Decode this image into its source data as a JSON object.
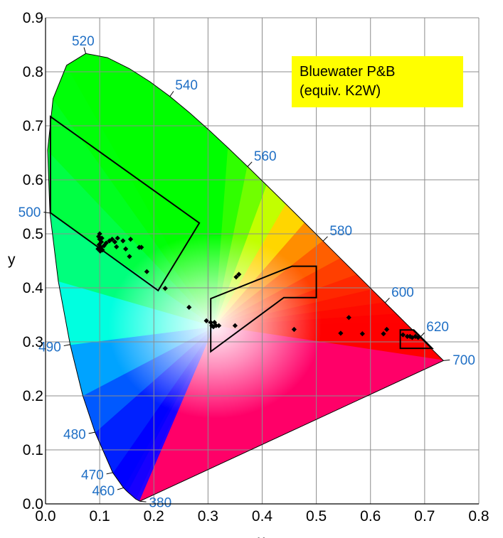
{
  "chart_data": {
    "type": "scatter",
    "title": "",
    "xlabel": "x",
    "ylabel": "y",
    "xlim": [
      0,
      0.8
    ],
    "ylim": [
      0,
      0.9
    ],
    "x_ticks": [
      "0.0",
      "0.1",
      "0.2",
      "0.3",
      "0.4",
      "0.5",
      "0.6",
      "0.7",
      "0.8"
    ],
    "y_ticks": [
      "0.0",
      "0.1",
      "0.2",
      "0.3",
      "0.4",
      "0.5",
      "0.6",
      "0.7",
      "0.8",
      "0.9"
    ],
    "grid": true,
    "annotation": {
      "line1": "Bluewater P&B",
      "line2": "(equiv. K2W)"
    },
    "annotation_color": "#ffff00",
    "wavelength_color": "#1f6fc5",
    "spectral_locus": [
      [
        0.1741,
        0.005
      ],
      [
        0.1666,
        0.0089
      ],
      [
        0.151,
        0.0227
      ],
      [
        0.144,
        0.0297
      ],
      [
        0.1241,
        0.0578
      ],
      [
        0.0913,
        0.1327
      ],
      [
        0.0687,
        0.2007
      ],
      [
        0.0454,
        0.295
      ],
      [
        0.0235,
        0.4127
      ],
      [
        0.0082,
        0.5384
      ],
      [
        0.0039,
        0.6548
      ],
      [
        0.0139,
        0.7502
      ],
      [
        0.0389,
        0.812
      ],
      [
        0.0743,
        0.8338
      ],
      [
        0.1142,
        0.8262
      ],
      [
        0.1547,
        0.8059
      ],
      [
        0.1929,
        0.7816
      ],
      [
        0.2296,
        0.7543
      ],
      [
        0.2658,
        0.7243
      ],
      [
        0.3016,
        0.6923
      ],
      [
        0.3373,
        0.6589
      ],
      [
        0.3731,
        0.6245
      ],
      [
        0.4087,
        0.5896
      ],
      [
        0.4441,
        0.5547
      ],
      [
        0.4788,
        0.5202
      ],
      [
        0.5125,
        0.4866
      ],
      [
        0.5448,
        0.4544
      ],
      [
        0.5752,
        0.4242
      ],
      [
        0.6029,
        0.3965
      ],
      [
        0.627,
        0.3725
      ],
      [
        0.6482,
        0.3514
      ],
      [
        0.6658,
        0.334
      ],
      [
        0.6801,
        0.3197
      ],
      [
        0.6915,
        0.3083
      ],
      [
        0.7006,
        0.2993
      ],
      [
        0.7079,
        0.292
      ],
      [
        0.714,
        0.2859
      ],
      [
        0.7347,
        0.2653
      ]
    ],
    "wavelength_labels": [
      {
        "label": "520",
        "x": 0.0743,
        "y": 0.8338,
        "dir": [
          -0.3,
          1.0
        ]
      },
      {
        "label": "540",
        "x": 0.2296,
        "y": 0.7543,
        "dir": [
          0.6,
          0.85
        ]
      },
      {
        "label": "560",
        "x": 0.3731,
        "y": 0.6245,
        "dir": [
          0.7,
          0.75
        ]
      },
      {
        "label": "580",
        "x": 0.5125,
        "y": 0.4866,
        "dir": [
          0.75,
          0.75
        ]
      },
      {
        "label": "600",
        "x": 0.627,
        "y": 0.3725,
        "dir": [
          0.7,
          0.75
        ]
      },
      {
        "label": "620",
        "x": 0.6915,
        "y": 0.3083,
        "dir": [
          0.7,
          0.75
        ]
      },
      {
        "label": "700",
        "x": 0.7347,
        "y": 0.2653,
        "dir": [
          1.0,
          0.1
        ]
      },
      {
        "label": "500",
        "x": 0.0082,
        "y": 0.5384,
        "dir": [
          -1.0,
          0.15
        ]
      },
      {
        "label": "490",
        "x": 0.0454,
        "y": 0.295,
        "dir": [
          -1.0,
          -0.2
        ]
      },
      {
        "label": "480",
        "x": 0.0913,
        "y": 0.1327,
        "dir": [
          -1.0,
          -0.2
        ]
      },
      {
        "label": "470",
        "x": 0.1241,
        "y": 0.0578,
        "dir": [
          -1.0,
          -0.2
        ]
      },
      {
        "label": "460",
        "x": 0.144,
        "y": 0.0297,
        "dir": [
          -1.0,
          -0.3
        ]
      },
      {
        "label": "380",
        "x": 0.1741,
        "y": 0.005,
        "dir": [
          1.0,
          -0.1
        ]
      }
    ],
    "regions": [
      {
        "name": "Green",
        "points": [
          [
            0.009,
            0.717
          ],
          [
            0.284,
            0.52
          ],
          [
            0.208,
            0.395
          ],
          [
            0.009,
            0.539
          ]
        ]
      },
      {
        "name": "White",
        "points": [
          [
            0.305,
            0.38
          ],
          [
            0.455,
            0.44
          ],
          [
            0.5,
            0.44
          ],
          [
            0.5,
            0.382
          ],
          [
            0.44,
            0.382
          ],
          [
            0.305,
            0.282
          ]
        ]
      },
      {
        "name": "Red",
        "points": [
          [
            0.655,
            0.322
          ],
          [
            0.68,
            0.322
          ],
          [
            0.714,
            0.288
          ],
          [
            0.655,
            0.288
          ]
        ]
      }
    ],
    "series": [
      {
        "points": [
          [
            0.098,
            0.495
          ],
          [
            0.1,
            0.49
          ],
          [
            0.103,
            0.485
          ],
          [
            0.099,
            0.48
          ],
          [
            0.102,
            0.475
          ],
          [
            0.105,
            0.47
          ],
          [
            0.108,
            0.478
          ],
          [
            0.112,
            0.483
          ],
          [
            0.118,
            0.487
          ],
          [
            0.123,
            0.49
          ],
          [
            0.128,
            0.485
          ],
          [
            0.097,
            0.472
          ],
          [
            0.101,
            0.468
          ],
          [
            0.1,
            0.5
          ],
          [
            0.104,
            0.492
          ],
          [
            0.133,
            0.492
          ],
          [
            0.143,
            0.487
          ],
          [
            0.157,
            0.49
          ],
          [
            0.131,
            0.476
          ],
          [
            0.148,
            0.472
          ],
          [
            0.155,
            0.458
          ],
          [
            0.173,
            0.475
          ],
          [
            0.177,
            0.475
          ],
          [
            0.187,
            0.43
          ],
          [
            0.221,
            0.399
          ],
          [
            0.265,
            0.364
          ],
          [
            0.297,
            0.339
          ],
          [
            0.305,
            0.336
          ],
          [
            0.307,
            0.33
          ],
          [
            0.31,
            0.328
          ],
          [
            0.312,
            0.336
          ],
          [
            0.315,
            0.33
          ],
          [
            0.32,
            0.33
          ],
          [
            0.35,
            0.33
          ],
          [
            0.352,
            0.42
          ],
          [
            0.357,
            0.425
          ],
          [
            0.459,
            0.323
          ],
          [
            0.545,
            0.316
          ],
          [
            0.56,
            0.345
          ],
          [
            0.585,
            0.315
          ],
          [
            0.624,
            0.315
          ],
          [
            0.63,
            0.323
          ],
          [
            0.66,
            0.313
          ],
          [
            0.668,
            0.31
          ],
          [
            0.673,
            0.31
          ],
          [
            0.677,
            0.308
          ],
          [
            0.683,
            0.31
          ],
          [
            0.688,
            0.308
          ]
        ]
      }
    ]
  }
}
